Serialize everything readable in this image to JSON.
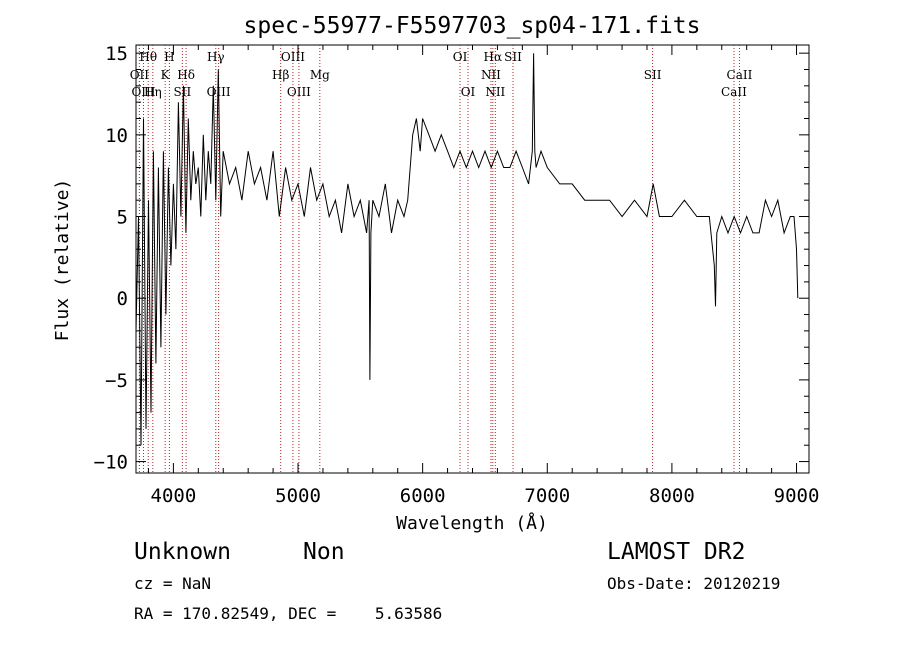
{
  "title": "spec-55977-F5597703_sp04-171.fits",
  "footer": {
    "class_label": "Unknown",
    "subclass_label": "Non",
    "survey": "LAMOST DR2",
    "cz": "cz = NaN",
    "obs_date": "Obs-Date: 20120219",
    "coords": "RA = 170.82549, DEC =    5.63586"
  },
  "colors": {
    "spectrum": "#000000",
    "line_marker": "#b22222"
  },
  "chart_data": {
    "type": "line",
    "title": "spec-55977-F5597703_sp04-171.fits",
    "xlabel": "Wavelength (Å)",
    "ylabel": "Flux (relative)",
    "xlim": [
      3700,
      9100
    ],
    "ylim": [
      -10.7,
      15.5
    ],
    "xticks": [
      4000,
      5000,
      6000,
      7000,
      8000,
      9000
    ],
    "yticks": [
      -10,
      -5,
      0,
      5,
      10,
      15
    ],
    "grid": false,
    "spectral_lines": [
      {
        "label": "Hθ",
        "x": 3798,
        "row": 1
      },
      {
        "label": "OII",
        "x": 3727,
        "row": 2
      },
      {
        "label": "OIII",
        "x": 3760,
        "row": 3
      },
      {
        "label": "Hη",
        "x": 3835,
        "row": 3
      },
      {
        "label": "H",
        "x": 3968,
        "row": 1
      },
      {
        "label": "K",
        "x": 3934,
        "row": 2
      },
      {
        "label": "Hδ",
        "x": 4102,
        "row": 2
      },
      {
        "label": "SII",
        "x": 4072,
        "row": 3
      },
      {
        "label": "Hγ",
        "x": 4340,
        "row": 1
      },
      {
        "label": "OIII",
        "x": 4363,
        "row": 3
      },
      {
        "label": "OIII",
        "x": 4959,
        "row": 1
      },
      {
        "label": "Hβ",
        "x": 4861,
        "row": 2
      },
      {
        "label": "Mg",
        "x": 5175,
        "row": 2
      },
      {
        "label": "OIII",
        "x": 5007,
        "row": 3
      },
      {
        "label": "OI",
        "x": 6300,
        "row": 1
      },
      {
        "label": "OI",
        "x": 6364,
        "row": 3
      },
      {
        "label": "Hα",
        "x": 6563,
        "row": 1
      },
      {
        "label": "NII",
        "x": 6548,
        "row": 2
      },
      {
        "label": "NII",
        "x": 6583,
        "row": 3
      },
      {
        "label": "SII",
        "x": 6725,
        "row": 1
      },
      {
        "label": "SII",
        "x": 7845,
        "row": 2
      },
      {
        "label": "CaII",
        "x": 8542,
        "row": 2
      },
      {
        "label": "CaII",
        "x": 8498,
        "row": 3
      }
    ],
    "series": [
      {
        "x": [
          3700,
          3720,
          3740,
          3760,
          3780,
          3800,
          3820,
          3840,
          3860,
          3880,
          3900,
          3920,
          3940,
          3960,
          3980,
          4000,
          4020,
          4040,
          4060,
          4080,
          4100,
          4120,
          4140,
          4160,
          4180,
          4200,
          4220,
          4240,
          4260,
          4280,
          4300,
          4320,
          4340,
          4360,
          4380,
          4400,
          4450,
          4500,
          4550,
          4600,
          4650,
          4700,
          4750,
          4800,
          4850,
          4900,
          4950,
          5000,
          5050,
          5100,
          5150,
          5200,
          5250,
          5300,
          5350,
          5400,
          5450,
          5500,
          5550,
          5570,
          5577,
          5585,
          5600,
          5650,
          5700,
          5750,
          5800,
          5850,
          5880,
          5900,
          5920,
          5950,
          5980,
          6000,
          6050,
          6100,
          6150,
          6200,
          6250,
          6300,
          6350,
          6400,
          6450,
          6500,
          6550,
          6600,
          6650,
          6700,
          6750,
          6800,
          6850,
          6880,
          6890,
          6900,
          6910,
          6950,
          7000,
          7100,
          7200,
          7300,
          7400,
          7500,
          7600,
          7700,
          7800,
          7850,
          7900,
          8000,
          8100,
          8200,
          8300,
          8340,
          8350,
          8360,
          8400,
          8450,
          8500,
          8550,
          8600,
          8650,
          8700,
          8750,
          8800,
          8850,
          8900,
          8950,
          8980,
          9000,
          9010
        ],
        "y": [
          -2,
          5,
          -9,
          11,
          -8,
          6,
          -7,
          9,
          -4,
          8,
          -3,
          9,
          -1,
          8,
          2,
          7,
          3,
          12,
          5,
          13,
          4,
          11,
          6,
          9,
          7,
          8,
          5,
          10,
          6,
          9,
          7,
          13,
          6,
          14,
          5,
          9,
          7,
          8,
          6,
          9,
          7,
          8,
          6,
          9,
          5,
          8,
          6,
          7,
          5,
          8,
          6,
          7,
          5,
          6,
          4,
          7,
          5,
          6,
          4,
          6,
          -5,
          4,
          6,
          5,
          7,
          4,
          6,
          5,
          6,
          8,
          10,
          11,
          9,
          11,
          10,
          9,
          10,
          9,
          8,
          9,
          8,
          9,
          8,
          9,
          8,
          9,
          8,
          8,
          9,
          8,
          7,
          9,
          15,
          9,
          8,
          9,
          8,
          7,
          7,
          6,
          6,
          6,
          5,
          6,
          5,
          7,
          5,
          5,
          6,
          5,
          5,
          2,
          -0.5,
          4,
          5,
          4,
          5,
          4,
          5,
          4,
          4,
          6,
          5,
          6,
          4,
          5,
          5,
          3,
          0
        ]
      }
    ]
  }
}
